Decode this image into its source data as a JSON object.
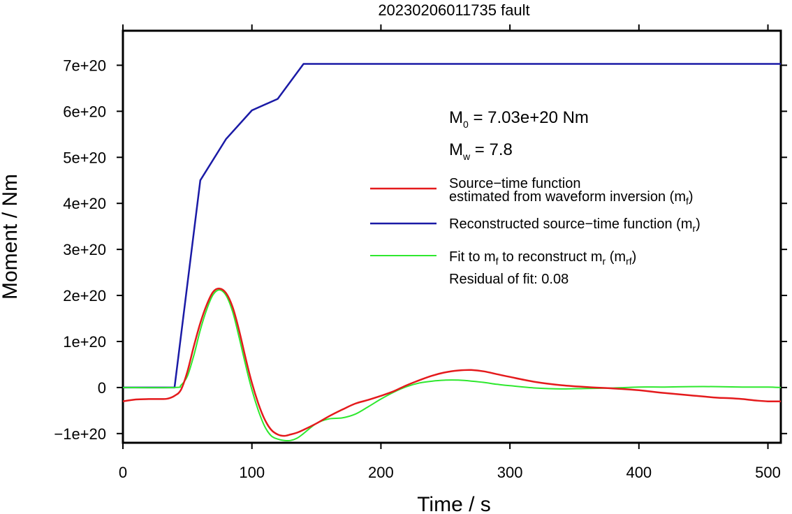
{
  "chart_data": {
    "type": "line",
    "title": "20230206011735 fault",
    "xlabel": "Time / s",
    "ylabel": "Moment / Nm",
    "xlim": [
      0,
      510
    ],
    "ylim": [
      -1.2e+20,
      7.75e+20
    ],
    "xticks": [
      0,
      100,
      200,
      300,
      400,
      500
    ],
    "xtick_labels": [
      "0",
      "100",
      "200",
      "300",
      "400",
      "500"
    ],
    "yticks": [
      -1e+20,
      0,
      1e+20,
      2e+20,
      3e+20,
      4e+20,
      5e+20,
      6e+20,
      7e+20
    ],
    "ytick_labels": [
      "−1e+20",
      "0",
      "1e+20",
      "2e+20",
      "3e+20",
      "4e+20",
      "5e+20",
      "6e+20",
      "7e+20"
    ],
    "grid": false,
    "legend_position": "right",
    "annotations": {
      "m0_main": "M",
      "m0_sub": "0",
      "m0_rest": " = 7.03e+20 Nm",
      "mw_main": "M",
      "mw_sub": "w",
      "mw_rest": " = 7.8",
      "residual": "Residual of fit: 0.08"
    },
    "series": [
      {
        "name": "estimated",
        "legend_line1": "Source−time function",
        "legend_line2_main": "estimated from waveform inversion (m",
        "legend_line2_sub": "f",
        "legend_line2_end": ")",
        "color": "#e41a1c",
        "x": [
          0,
          10,
          20,
          30,
          35,
          40,
          45,
          50,
          55,
          60,
          65,
          70,
          75,
          80,
          85,
          90,
          95,
          100,
          105,
          110,
          115,
          120,
          125,
          130,
          135,
          140,
          150,
          160,
          170,
          180,
          190,
          200,
          210,
          220,
          230,
          240,
          250,
          260,
          270,
          280,
          290,
          300,
          320,
          340,
          360,
          380,
          400,
          420,
          440,
          460,
          470,
          480,
          490,
          500,
          510
        ],
        "y": [
          -3e+19,
          -2.6e+19,
          -2.5e+19,
          -2.5e+19,
          -2.4e+19,
          -1.8e+19,
          -5e+18,
          3.5e+19,
          9e+19,
          1.4e+20,
          1.8e+20,
          2.08e+20,
          2.15e+20,
          2.05e+20,
          1.75e+20,
          1.25e+20,
          6.5e+19,
          1e+19,
          -3.5e+19,
          -7e+19,
          -9.2e+19,
          -1.02e+20,
          -1.05e+20,
          -1.02e+20,
          -9.8e+19,
          -9.2e+19,
          -7.8e+19,
          -6.2e+19,
          -4.8e+19,
          -3.5e+19,
          -2.7e+19,
          -1.8e+19,
          -8e+18,
          5e+18,
          1.6e+19,
          2.6e+19,
          3.3e+19,
          3.7e+19,
          3.8e+19,
          3.5e+19,
          2.9e+19,
          2.3e+19,
          1.2e+19,
          5e+18,
          1e+18,
          -2e+18,
          -6e+18,
          -1.2e+19,
          -1.7e+19,
          -2.2e+19,
          -2.3e+19,
          -2.5e+19,
          -2.8e+19,
          -3e+19,
          -3e+19
        ]
      },
      {
        "name": "reconstructed",
        "legend_main": "Reconstructed source−time function (m",
        "legend_sub": "r",
        "legend_end": ")",
        "color": "#1a1aa6",
        "x": [
          0,
          40,
          60,
          80,
          100,
          120,
          140,
          510
        ],
        "y": [
          0,
          0,
          4.5e+20,
          5.4e+20,
          6.02e+20,
          6.27e+20,
          7.03e+20,
          7.03e+20
        ]
      },
      {
        "name": "fit",
        "legend_main": "Fit to m",
        "legend_sub1": "f",
        "legend_mid": " to reconstruct m",
        "legend_sub2": "r",
        "legend_mid2": " (m",
        "legend_sub3": "rf",
        "legend_end": ")",
        "color": "#2ee82e",
        "x": [
          0,
          40,
          45,
          50,
          55,
          60,
          65,
          70,
          75,
          80,
          85,
          90,
          95,
          100,
          105,
          110,
          115,
          120,
          125,
          130,
          135,
          140,
          150,
          160,
          170,
          180,
          190,
          200,
          210,
          220,
          230,
          240,
          250,
          260,
          270,
          280,
          290,
          300,
          320,
          340,
          360,
          380,
          400,
          420,
          440,
          460,
          480,
          500,
          510
        ],
        "y": [
          0,
          0,
          5e+18,
          2.5e+19,
          7e+19,
          1.25e+20,
          1.7e+20,
          2.02e+20,
          2.12e+20,
          2e+20,
          1.65e+20,
          1.1e+20,
          5e+19,
          -5e+18,
          -5e+19,
          -8.5e+19,
          -1.05e+20,
          -1.12e+20,
          -1.15e+20,
          -1.15e+20,
          -1.1e+20,
          -1e+20,
          -7.8e+19,
          -6.8e+19,
          -6.6e+19,
          -5.8e+19,
          -4.2e+19,
          -2.5e+19,
          -1e+19,
          2e+18,
          1e+19,
          1.4e+19,
          1.6e+19,
          1.6e+19,
          1.4e+19,
          1.1e+19,
          7e+18,
          4e+18,
          -1e+18,
          -3e+18,
          -2e+18,
          -1e+18,
          1e+18,
          1e+18,
          2e+18,
          2e+18,
          1e+18,
          1e+18,
          0.0
        ]
      }
    ]
  }
}
